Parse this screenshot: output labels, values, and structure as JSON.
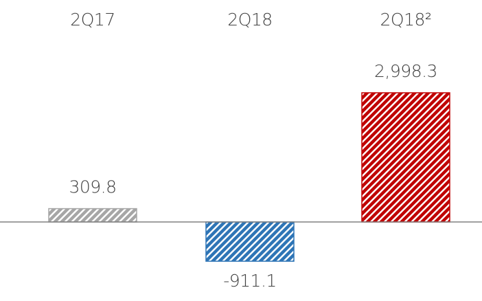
{
  "chart_data": {
    "type": "bar",
    "categories": [
      "2Q17",
      "2Q18",
      "2Q18²"
    ],
    "values": [
      309.8,
      -911.1,
      2998.3
    ],
    "value_labels": [
      "309.8",
      "-911.1",
      "2,998.3"
    ],
    "colors": [
      "#a6a6a6",
      "#2e75b6",
      "#c00000"
    ],
    "ylim": [
      -1000,
      3000
    ]
  }
}
